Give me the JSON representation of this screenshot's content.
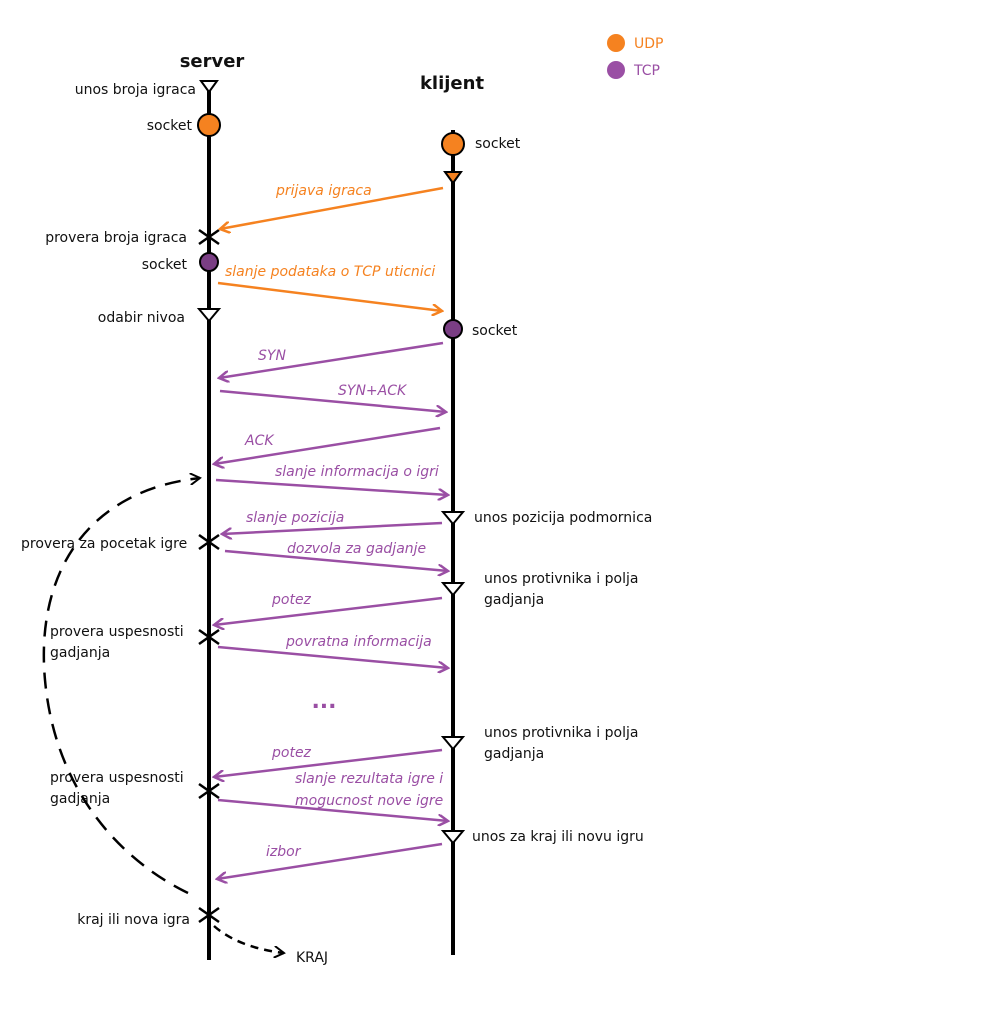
{
  "colors": {
    "udp": "#f58220",
    "tcp": "#9a4fa4",
    "tcp_socket": "#7a3e84",
    "line": "#000000"
  },
  "lifelines": {
    "server": "server",
    "client": "klijent"
  },
  "legend": [
    {
      "label": "UDP",
      "color_key": "udp",
      "icon": "orange-dot-icon"
    },
    {
      "label": "TCP",
      "color_key": "tcp",
      "icon": "purple-dot-icon"
    }
  ],
  "server_labels": [
    "unos broja igraca",
    "socket",
    "provera broja igraca",
    "socket",
    "odabir nivoa",
    "provera za pocetak igre",
    "provera uspesnosti",
    "gadjanja",
    "provera uspesnosti",
    "gadjanja",
    "kraj ili nova igra"
  ],
  "client_labels": [
    "socket",
    "socket",
    "unos pozicija podmornica",
    "unos protivnika i polja",
    "gadjanja",
    "unos protivnika i polja",
    "gadjanja",
    "unos za kraj ili novu igru"
  ],
  "messages": [
    {
      "text": "prijava igraca",
      "protocol": "udp",
      "direction": "to-server"
    },
    {
      "text": "slanje podataka o TCP uticnici",
      "protocol": "udp",
      "direction": "to-client"
    },
    {
      "text": "SYN",
      "protocol": "tcp",
      "direction": "to-server"
    },
    {
      "text": "SYN+ACK",
      "protocol": "tcp",
      "direction": "to-client"
    },
    {
      "text": "ACK",
      "protocol": "tcp",
      "direction": "to-server"
    },
    {
      "text": "slanje informacija o igri",
      "protocol": "tcp",
      "direction": "to-client"
    },
    {
      "text": "slanje pozicija",
      "protocol": "tcp",
      "direction": "to-server"
    },
    {
      "text": "dozvola za gadjanje",
      "protocol": "tcp",
      "direction": "to-client"
    },
    {
      "text": "potez",
      "protocol": "tcp",
      "direction": "to-server"
    },
    {
      "text": "povratna informacija",
      "protocol": "tcp",
      "direction": "to-client"
    },
    {
      "text": "potez",
      "protocol": "tcp",
      "direction": "to-server"
    },
    {
      "text": "slanje rezultata igre i",
      "protocol": "tcp",
      "direction": "to-client"
    },
    {
      "text": "mogucnost nove igre",
      "protocol": "tcp",
      "direction": "to-client"
    },
    {
      "text": "izbor",
      "protocol": "tcp",
      "direction": "to-server"
    }
  ],
  "ellipsis": "...",
  "end_label": "KRAJ"
}
